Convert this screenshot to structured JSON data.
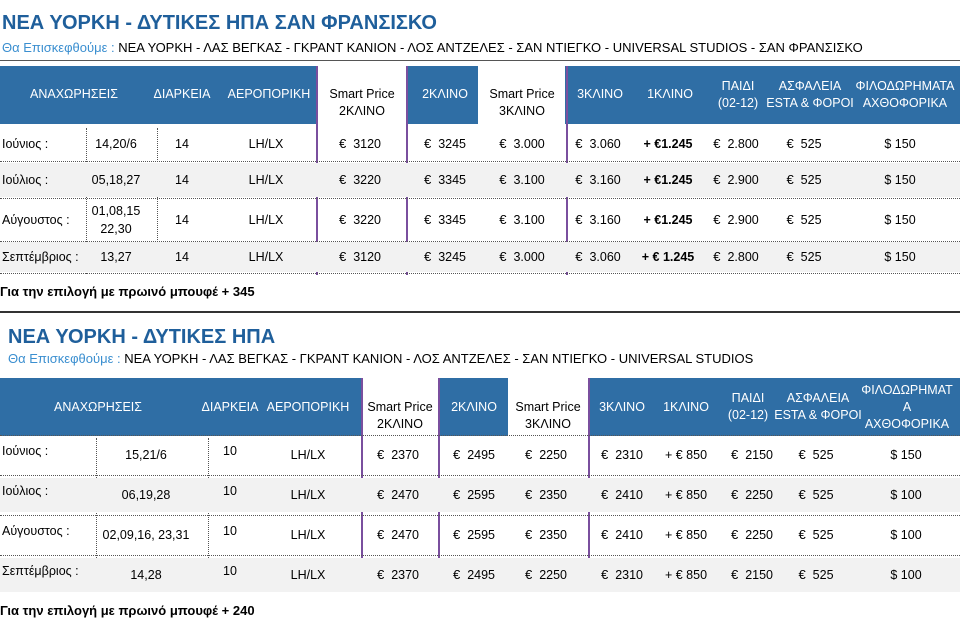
{
  "section1": {
    "title": "ΝΕΑ ΥΟΡΚΗ - ΔΥΤΙΚΕΣ ΗΠΑ  ΣΑΝ ΦΡΑΝΣΙΣΚΟ",
    "visit_label": "Θα Επισκεφθούμε :",
    "visit_route": "ΝΕΑ ΥΟΡΚΗ - ΛΑΣ ΒΕΓΚΑΣ - ΓΚΡΑΝΤ ΚΑΝΙΟΝ - ΛΟΣ ΑΝΤΖΕΛΕΣ - ΣΑΝ ΝΤΙΕΓΚΟ - UNIVERSAL STUDIOS - ΣΑΝ ΦΡΑΝΣΙΣΚΟ",
    "headers": {
      "departures": "ΑΝΑΧΩΡΗΣΕΙΣ",
      "duration": "ΔΙΑΡΚΕΙΑ",
      "airline": "ΑΕΡΟΠΟΡΙΚΗ",
      "smart2_a": "Smart Price",
      "smart2_b": "2ΚΛΙΝΟ",
      "double": "2ΚΛΙΝΟ",
      "smart3_a": "Smart Price",
      "smart3_b": "3ΚΛΙΝΟ",
      "triple": "3ΚΛΙΝΟ",
      "single": "1ΚΛΙΝΟ",
      "child_a": "ΠΑΙΔΙ",
      "child_b": "(02-12)",
      "insurance_a": "ΑΣΦΑΛΕΙΑ",
      "insurance_b": "ESTA & ΦΟΡΟΙ",
      "tips_a": "ΦΙΛΟΔΩΡΗΜΑΤΑ",
      "tips_b": "ΑΧΘΟΦΟΡΙΚΑ"
    },
    "rows": [
      {
        "month": "Ιούνιος :",
        "dates": "14,20/6",
        "dates2": "",
        "duration": "14",
        "airline": "LH/LX",
        "smart2": "3120",
        "double": "3245",
        "smart3": "3.000",
        "triple": "3.060",
        "single": "+ €1.245",
        "child": "2.800",
        "insurance": "525",
        "tips": "$ 150"
      },
      {
        "month": "Ιούλιος :",
        "dates": "05,18,27",
        "dates2": "",
        "duration": "14",
        "airline": "LH/LX",
        "smart2": "3220",
        "double": "3345",
        "smart3": "3.100",
        "triple": "3.160",
        "single": "+ €1.245",
        "child": "2.900",
        "insurance": "525",
        "tips": "$ 150"
      },
      {
        "month": "Αύγουστος :",
        "dates": "01,08,15",
        "dates2": "22,30",
        "duration": "14",
        "airline": "LH/LX",
        "smart2": "3220",
        "double": "3345",
        "smart3": "3.100",
        "triple": "3.160",
        "single": "+ €1.245",
        "child": "2.900",
        "insurance": "525",
        "tips": "$ 150"
      },
      {
        "month": "Σεπτέμβριος :",
        "dates": "13,27",
        "dates2": "",
        "duration": "14",
        "airline": "LH/LX",
        "smart2": "3120",
        "double": "3245",
        "smart3": "3.000",
        "triple": "3.060",
        "single": "+ € 1.245",
        "child": "2.800",
        "insurance": "525",
        "tips": "$ 150"
      }
    ],
    "note": "Για την επιλογή με πρωινό μπουφέ  + 345"
  },
  "section2": {
    "title": "ΝΕΑ ΥΟΡΚΗ - ΔΥΤΙΚΕΣ ΗΠΑ",
    "visit_label": "Θα Επισκεφθούμε :",
    "visit_route": "ΝΕΑ ΥΟΡΚΗ - ΛΑΣ ΒΕΓΚΑΣ - ΓΚΡΑΝΤ ΚΑΝΙΟΝ - ΛΟΣ ΑΝΤΖΕΛΕΣ - ΣΑΝ ΝΤΙΕΓΚΟ - UNIVERSAL STUDIOS",
    "headers": {
      "departures": "ΑΝΑΧΩΡΗΣΕΙΣ",
      "duration": "ΔΙΑΡΚΕΙΑ",
      "airline": "ΑΕΡΟΠΟΡΙΚΗ",
      "smart2_a": "Smart Price",
      "smart2_b": "2ΚΛΙΝΟ",
      "double": "2ΚΛΙΝΟ",
      "smart3_a": "Smart Price",
      "smart3_b": "3ΚΛΙΝΟ",
      "triple": "3ΚΛΙΝΟ",
      "single": "1ΚΛΙΝΟ",
      "child_a": "ΠΑΙΔΙ",
      "child_b": "(02-12)",
      "insurance_a": "ΑΣΦΑΛΕΙΑ",
      "insurance_b": "ESTA & ΦΟΡΟΙ",
      "tips_a": "ΦΙΛΟΔΩΡΗΜΑΤ",
      "tips_b": "Α",
      "tips_c": "ΑΧΘΟΦΟΡΙΚΑ"
    },
    "rows": [
      {
        "month": "Ιούνιος :",
        "dates": "15,21/6",
        "duration": "10",
        "airline": "LH/LX",
        "smart2": "2370",
        "double": "2495",
        "smart3": "2250",
        "triple": "2310",
        "single": "+ € 850",
        "child": "2150",
        "insurance": "525",
        "tips": "$ 150"
      },
      {
        "month": "Ιούλιος :",
        "dates": "06,19,28",
        "duration": "10",
        "airline": "LH/LX",
        "smart2": "2470",
        "double": "2595",
        "smart3": "2350",
        "triple": "2410",
        "single": "+ € 850",
        "child": "2250",
        "insurance": "525",
        "tips": "$ 100"
      },
      {
        "month": "Αύγουστος :",
        "dates": "02,09,16, 23,31",
        "duration": "10",
        "airline": "LH/LX",
        "smart2": "2470",
        "double": "2595",
        "smart3": "2350",
        "triple": "2410",
        "single": "+ € 850",
        "child": "2250",
        "insurance": "525",
        "tips": "$ 100"
      },
      {
        "month": "Σεπτέμβριος :",
        "dates": "14,28",
        "duration": "10",
        "airline": "LH/LX",
        "smart2": "2370",
        "double": "2495",
        "smart3": "2250",
        "triple": "2310",
        "single": "+ € 850",
        "child": "2150",
        "insurance": "525",
        "tips": "$ 100"
      }
    ],
    "note": "Για την επιλογή με πρωινό μπουφέ  + 240"
  },
  "currency_symbol": "€",
  "colors": {
    "header_bg": "#2f6ea5",
    "title": "#1f5f9b",
    "visit_label": "#3b8fd0",
    "divider": "#7a4f9e"
  }
}
